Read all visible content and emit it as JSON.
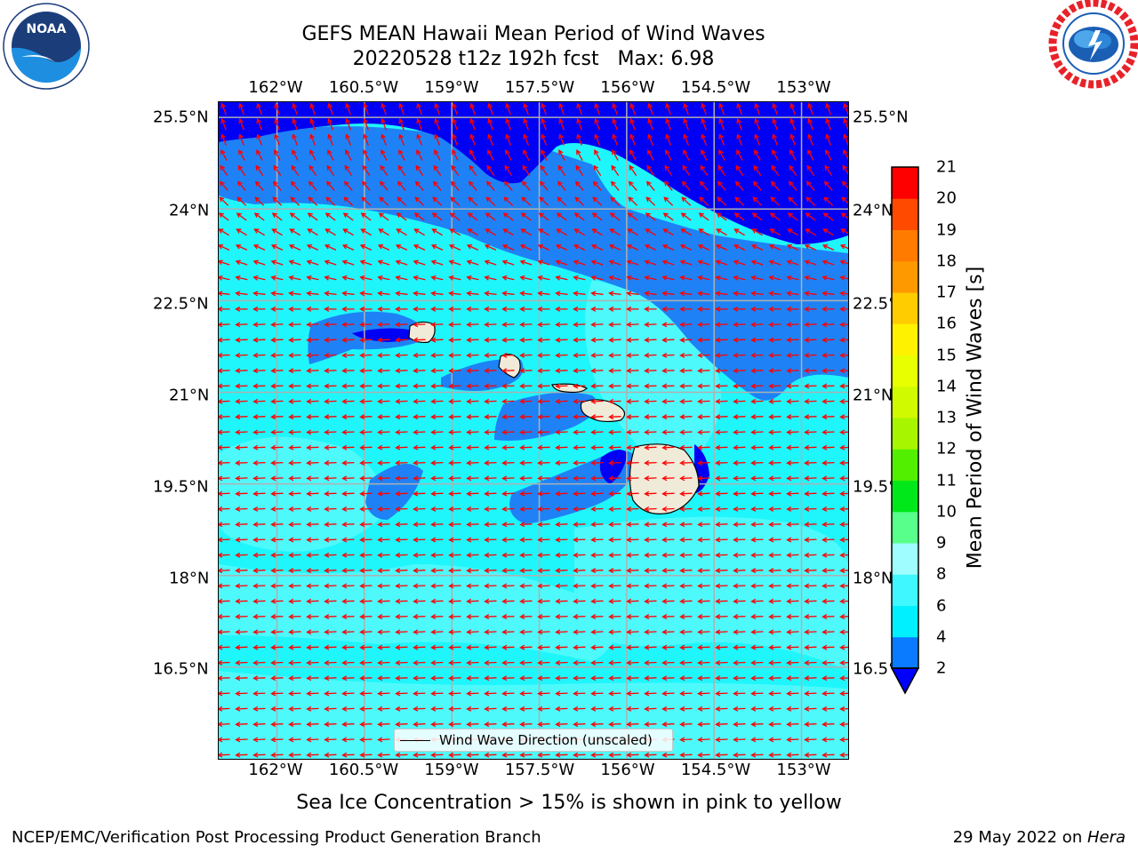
{
  "title": {
    "line1": "GEFS MEAN Hawaii Mean Period of Wind Waves",
    "line2": "20220528 t12z 192h fcst   Max: 6.98"
  },
  "logos": {
    "left": "noaa-logo",
    "left_text": "NOAA",
    "right": "nws-logo"
  },
  "map": {
    "lon_ticks": [
      "162°W",
      "160.5°W",
      "159°W",
      "157.5°W",
      "156°W",
      "154.5°W",
      "153°W"
    ],
    "lon_values": [
      -162,
      -160.5,
      -159,
      -157.5,
      -156,
      -154.5,
      -153
    ],
    "lat_ticks": [
      "25.5°N",
      "24°N",
      "22.5°N",
      "21°N",
      "19.5°N",
      "18°N",
      "16.5°N"
    ],
    "lat_values": [
      25.5,
      24,
      22.5,
      21,
      19.5,
      18,
      16.5
    ],
    "lon_range": [
      -163,
      -152.2
    ],
    "lat_range": [
      15,
      25.75
    ],
    "legend_label": "Wind Wave Direction (unscaled)",
    "arrow_color": "#ff0000",
    "land_color": "#efebd8",
    "grid_color": "#b0b0b0"
  },
  "colorbar": {
    "label": "Mean Period of Wind Waves [s]",
    "ticks": [
      "2",
      "4",
      "6",
      "8",
      "9",
      "10",
      "11",
      "12",
      "13",
      "14",
      "15",
      "16",
      "17",
      "18",
      "19",
      "20",
      "21"
    ],
    "colors": [
      "#0a7bff",
      "#00f0ff",
      "#3ff7ff",
      "#9ffcff",
      "#58ff8a",
      "#00e81a",
      "#52f000",
      "#a8f500",
      "#d0fa00",
      "#e8ff00",
      "#fff200",
      "#ffcc00",
      "#ff9900",
      "#ff7b00",
      "#ff4a00",
      "#ff0000"
    ],
    "under_color": "#0000ff"
  },
  "subtitle": "Sea Ice Concentration > 15% is shown in pink to yellow",
  "footer": {
    "left": "NCEP/EMC/Verification Post Processing Product Generation Branch",
    "right_prefix": "29 May 2022 on ",
    "right_italic": "Hera"
  }
}
